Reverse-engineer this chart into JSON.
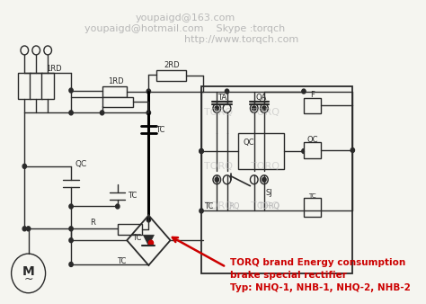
{
  "bg_color": "#f5f5f0",
  "line_color": "#2a2a2a",
  "watermark_color": "#b8b8b8",
  "red_color": "#cc0000",
  "wm1": "youpaigd@163.com",
  "wm2": "youpaigd@hotmail.com    Skype :torqch",
  "wm3": "http://www.torqch.com",
  "ann1": "TORQ brand Energy consumption",
  "ann2": "brake special rectifier",
  "ann3": "Typ: NHQ-1, NHB-1, NHQ-2, NHB-2"
}
